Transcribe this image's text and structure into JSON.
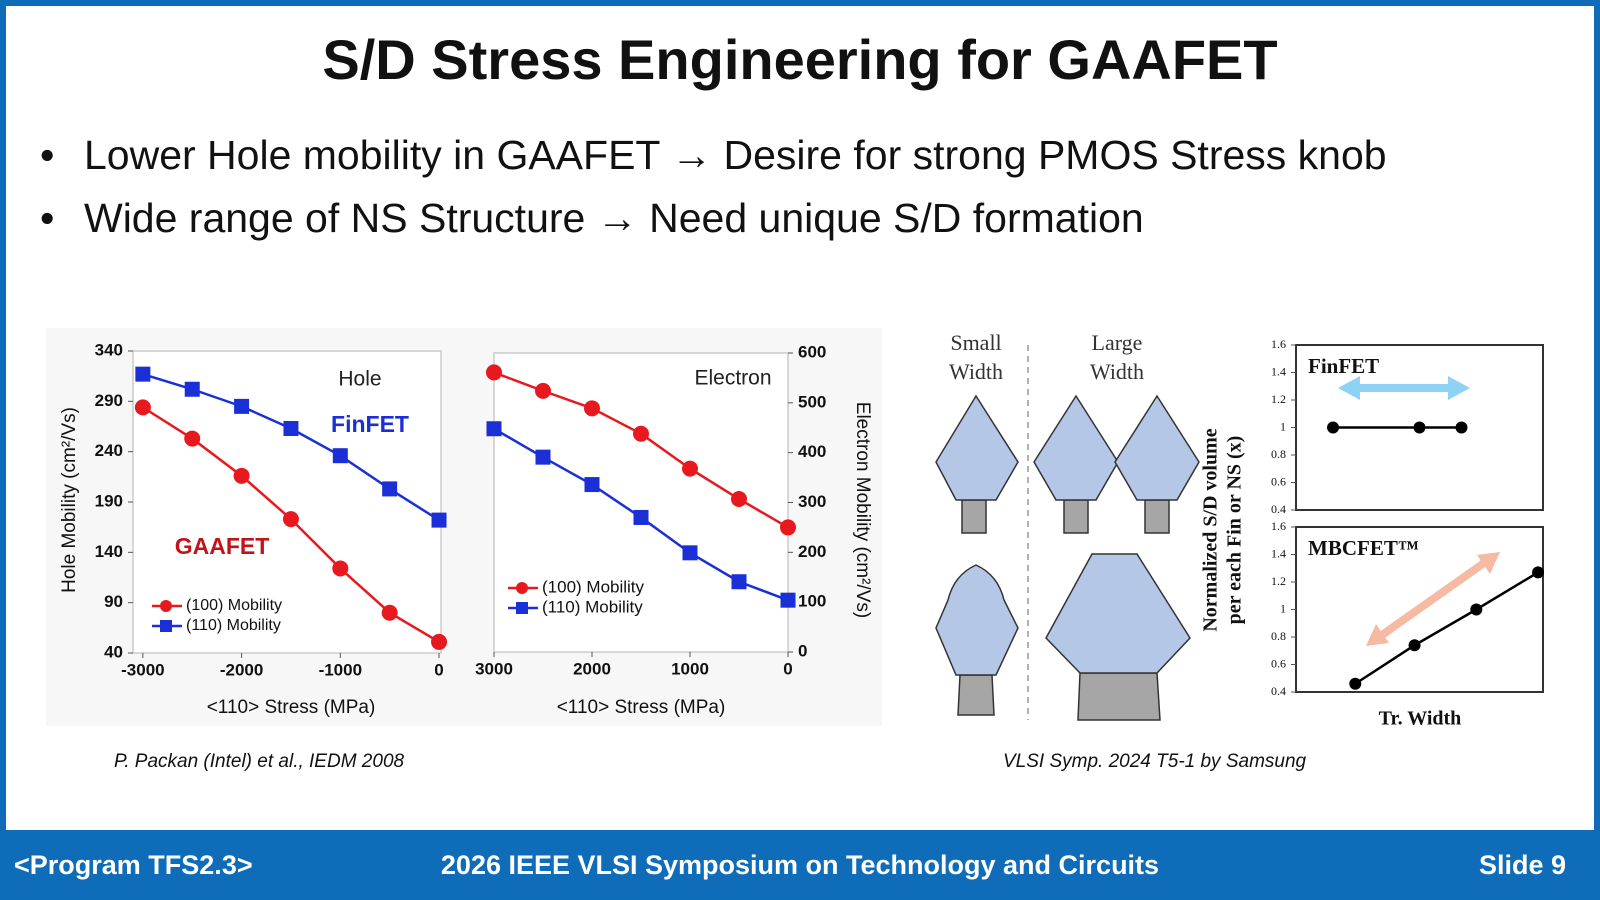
{
  "title": "S/D Stress Engineering for GAAFET",
  "bullets": [
    "Lower Hole mobility in GAAFET → Desire for strong PMOS Stress knob",
    "Wide range of NS Structure → Need unique S/D formation"
  ],
  "chart_data": [
    {
      "type": "line",
      "x_label": "<110> Stress (MPa)",
      "y_label": "Hole Mobility (cm²/Vs)",
      "x": [
        -3000,
        -2500,
        -2000,
        -1500,
        -1000,
        -500,
        0
      ],
      "xlim": [
        -3100,
        20
      ],
      "xticks": [
        -3000,
        -2000,
        -1000,
        0
      ],
      "ylim": [
        40,
        340
      ],
      "yticks": [
        40,
        90,
        140,
        190,
        240,
        290,
        340
      ],
      "y_side": "left",
      "legend": "lower left",
      "annotations": [
        {
          "text": "Hole",
          "color": "#222222"
        },
        {
          "text": "FinFET",
          "color": "#1a2fd6"
        },
        {
          "text": "GAAFET",
          "color": "#c0141a"
        }
      ],
      "series": [
        {
          "name": "(100) Mobility",
          "color": "#e8191e",
          "marker": "circle",
          "values": [
            284,
            253,
            216,
            173,
            124,
            80,
            51
          ]
        },
        {
          "name": "(110) Mobility",
          "color": "#1a2fd6",
          "marker": "square",
          "values": [
            317,
            302,
            285,
            263,
            236,
            203,
            172
          ]
        }
      ]
    },
    {
      "type": "line",
      "x_label": "<110> Stress (MPa)",
      "y_label": "Electron Mobility (cm²/Vs)",
      "x": [
        3000,
        2500,
        2000,
        1500,
        1000,
        500,
        0
      ],
      "xlim": [
        3000,
        0
      ],
      "xticks": [
        3000,
        2000,
        1000,
        0
      ],
      "ylim": [
        0,
        600
      ],
      "yticks": [
        0,
        100,
        200,
        300,
        400,
        500,
        600
      ],
      "y_side": "right",
      "legend": "lower left",
      "annotations": [
        {
          "text": "Electron",
          "color": "#222222"
        }
      ],
      "series": [
        {
          "name": "(100) Mobility",
          "color": "#e8191e",
          "marker": "circle",
          "values": [
            561,
            524,
            489,
            438,
            368,
            307,
            250
          ]
        },
        {
          "name": "(110) Mobility",
          "color": "#1a2fd6",
          "marker": "square",
          "values": [
            448,
            391,
            336,
            270,
            199,
            141,
            104
          ]
        }
      ]
    },
    {
      "type": "line",
      "title": "FinFET",
      "y_label": [
        "Normalized S/D volume",
        "per each Fin or NS (x)"
      ],
      "x": [
        1.5,
        5,
        6.7
      ],
      "xlim": [
        0,
        10
      ],
      "ylim": [
        0.4,
        1.6
      ],
      "yticks": [
        0.4,
        0.6,
        0.8,
        1,
        1.2,
        1.4,
        1.6
      ],
      "y_side": "left",
      "series": [
        {
          "color": "#000000",
          "marker": "circle",
          "values": [
            1,
            1,
            1
          ]
        }
      ]
    },
    {
      "type": "line",
      "title": "MBCFET™",
      "x_label": "Tr. Width",
      "x": [
        2.4,
        4.8,
        7.3,
        9.8
      ],
      "xlim": [
        0,
        10
      ],
      "ylim": [
        0.4,
        1.6
      ],
      "yticks": [
        0.4,
        0.6,
        0.8,
        1,
        1.2,
        1.4,
        1.6
      ],
      "y_side": "left",
      "series": [
        {
          "color": "#000000",
          "marker": "circle",
          "values": [
            0.46,
            0.74,
            1.0,
            1.27
          ]
        }
      ]
    }
  ],
  "diagram": {
    "labels": [
      [
        "Small",
        "Width"
      ],
      [
        "Large",
        "Width"
      ]
    ]
  },
  "citations": [
    "P. Packan (Intel) et al., IEDM 2008",
    "VLSI Symp. 2024 T5-1 by Samsung"
  ],
  "footer": {
    "program": "<Program TFS2.3>",
    "event": "2026 IEEE VLSI Symposium on Technology and Circuits",
    "slide": "Slide 9"
  }
}
